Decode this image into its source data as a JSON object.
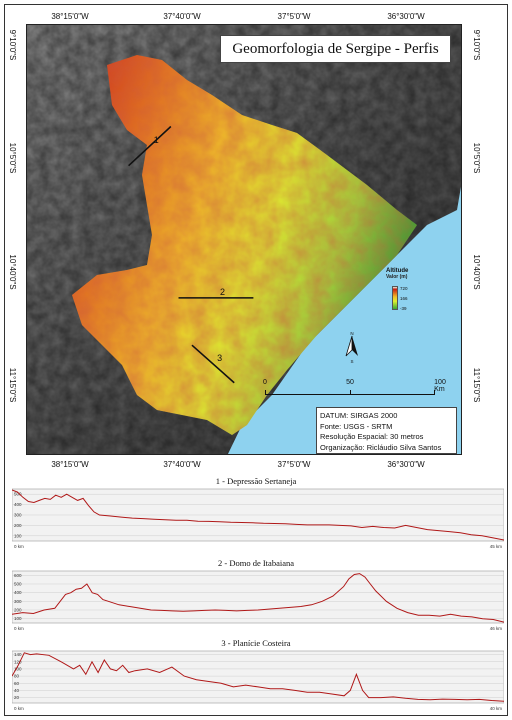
{
  "map": {
    "title": "Geomorfologia de Sergipe - Perfis",
    "coords": {
      "top": [
        "38°15'0\"W",
        "37°40'0\"W",
        "37°5'0\"W",
        "36°30'0\"W"
      ],
      "bottom": [
        "38°15'0\"W",
        "37°40'0\"W",
        "37°5'0\"W",
        "36°30'0\"W"
      ],
      "left": [
        "9°10'0\"S",
        "10°5'0\"S",
        "10°40'0\"S",
        "11°15'0\"S"
      ],
      "right": [
        "9°10'0\"S",
        "10°5'0\"S",
        "10°40'0\"S",
        "11°15'0\"S"
      ]
    },
    "profile_lines": [
      {
        "label": "1",
        "from": [
          -37.95,
          -9.9
        ],
        "to": [
          -37.73,
          -9.66
        ]
      },
      {
        "label": "2",
        "from": [
          -37.69,
          -10.71
        ],
        "to": [
          -37.3,
          -10.71
        ]
      },
      {
        "label": "3",
        "from": [
          -37.62,
          -11.0
        ],
        "to": [
          -37.4,
          -11.23
        ]
      }
    ],
    "legend": {
      "title": "Altitude",
      "subtitle": "Valor (m)",
      "max": "720",
      "mid": "166",
      "min": "-39",
      "colors": [
        "#c81e14",
        "#f0be28",
        "#dcf030",
        "#3aa832"
      ]
    },
    "scale": {
      "labels": [
        "0",
        "50",
        "100 Km"
      ],
      "fractions": [
        0,
        0.5,
        1
      ]
    },
    "north": {
      "n": "N",
      "s": "S"
    },
    "info": [
      "DATUM: SIRGAS 2000",
      "Fonte: USGS - SRTM",
      "Resolução Espacial: 30 metros",
      "Organização: Ricláudio Silva Santos"
    ],
    "colors": {
      "sea": "#8ed2ef",
      "land_gray": "#6e6e6e",
      "high": "#c81e14",
      "mid": "#f0be28",
      "low": "#3aa832"
    }
  },
  "profiles": [
    {
      "title": "1 - Depressão Sertaneja",
      "start_label": "0 km",
      "end_label": "45 km",
      "y_ticks": [
        "100",
        "200",
        "300",
        "400",
        "500"
      ],
      "ylim": [
        50,
        550
      ],
      "xlim": [
        0,
        45
      ],
      "x": [
        0,
        0.5,
        1,
        1.5,
        2,
        2.5,
        3,
        3.5,
        4,
        4.5,
        5,
        5.5,
        6,
        6.5,
        7,
        7.5,
        8,
        9,
        10,
        11,
        12,
        13,
        14,
        15,
        16,
        17,
        18,
        19,
        20,
        21,
        22,
        23,
        24,
        25,
        26,
        27,
        28,
        29,
        30,
        31,
        32,
        33,
        34,
        35,
        36,
        37,
        38,
        39,
        40,
        41,
        42,
        43,
        44,
        45
      ],
      "y": [
        540,
        520,
        470,
        430,
        420,
        440,
        460,
        450,
        490,
        470,
        500,
        470,
        440,
        460,
        390,
        330,
        300,
        290,
        280,
        270,
        265,
        260,
        255,
        250,
        250,
        240,
        238,
        235,
        230,
        228,
        225,
        220,
        218,
        215,
        210,
        205,
        205,
        205,
        200,
        195,
        180,
        190,
        180,
        175,
        200,
        180,
        160,
        150,
        140,
        130,
        110,
        100,
        80,
        60
      ]
    },
    {
      "title": "2 - Domo de Itabaiana",
      "start_label": "0 km",
      "end_label": "46 km",
      "y_ticks": [
        "100",
        "200",
        "300",
        "400",
        "500",
        "600"
      ],
      "ylim": [
        50,
        650
      ],
      "xlim": [
        0,
        46
      ],
      "x": [
        0,
        1,
        2,
        3,
        4,
        5,
        5.5,
        6,
        6.5,
        7,
        7.5,
        8,
        8.5,
        9,
        10,
        11,
        12,
        13,
        14,
        15,
        16,
        17,
        18,
        19,
        20,
        21,
        22,
        23,
        24,
        25,
        26,
        27,
        28,
        29,
        30,
        31,
        31.5,
        32,
        32.5,
        33,
        33.5,
        34,
        35,
        36,
        37,
        38,
        39,
        40,
        41,
        42,
        43,
        44,
        45,
        46
      ],
      "y": [
        150,
        170,
        160,
        200,
        220,
        380,
        400,
        440,
        450,
        500,
        400,
        380,
        320,
        300,
        260,
        240,
        220,
        200,
        195,
        190,
        185,
        190,
        195,
        200,
        195,
        190,
        195,
        200,
        210,
        220,
        230,
        240,
        260,
        300,
        360,
        470,
        560,
        610,
        620,
        580,
        500,
        420,
        300,
        220,
        170,
        140,
        140,
        130,
        150,
        130,
        120,
        100,
        90,
        60
      ]
    },
    {
      "title": "3 - Planície Costeira",
      "start_label": "0 km",
      "end_label": "40 km",
      "y_ticks": [
        "20",
        "40",
        "60",
        "80",
        "100",
        "120",
        "140"
      ],
      "ylim": [
        5,
        150
      ],
      "xlim": [
        0,
        40
      ],
      "x": [
        0,
        0.5,
        1,
        1.5,
        2,
        3,
        4,
        5,
        5.5,
        6,
        6.5,
        7,
        7.5,
        8,
        8.5,
        9,
        9.5,
        10,
        11,
        12,
        13,
        14,
        15,
        16,
        17,
        18,
        19,
        20,
        21,
        22,
        23,
        24,
        25,
        26,
        27,
        27.5,
        28,
        28.5,
        29,
        30,
        31,
        32,
        33,
        34,
        35,
        36,
        37,
        38,
        39,
        40
      ],
      "y": [
        80,
        110,
        145,
        140,
        142,
        138,
        120,
        100,
        110,
        85,
        120,
        90,
        125,
        100,
        95,
        110,
        90,
        95,
        100,
        90,
        105,
        80,
        70,
        65,
        60,
        50,
        55,
        50,
        45,
        45,
        40,
        35,
        35,
        30,
        25,
        40,
        85,
        40,
        20,
        20,
        22,
        18,
        15,
        14,
        16,
        15,
        14,
        15,
        12,
        10
      ]
    }
  ]
}
